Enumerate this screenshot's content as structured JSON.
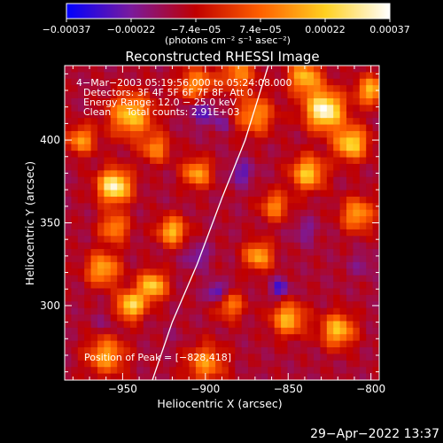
{
  "chart_data": {
    "type": "heatmap",
    "title": "Reconstructed RHESSI Image",
    "xlabel": "Heliocentric X (arcsec)",
    "ylabel": "Heliocentric Y (arcsec)",
    "xlim": [
      -985,
      -795
    ],
    "ylim": [
      255,
      445
    ],
    "xticks": [
      -950,
      -900,
      -850,
      -800
    ],
    "xtick_labels": [
      "−950",
      "−900",
      "−850",
      "−800"
    ],
    "yticks": [
      300,
      350,
      400
    ],
    "ytick_labels": [
      "300",
      "350",
      "400"
    ],
    "colorbar": {
      "range": [
        -0.00037,
        0.00037
      ],
      "tick_labels": [
        "−0.00037",
        "−0.00022",
        "−7.4e−05",
        "7.4e−05",
        "0.00022",
        "0.00037"
      ],
      "units_text": "(photons cm⁻² s⁻¹ asec⁻²)",
      "colors": [
        "#0000ff",
        "#7a1a9c",
        "#c00000",
        "#ff6000",
        "#ffd020",
        "#ffffff"
      ]
    },
    "annotations": [
      "4−Mar−2003 05:19:56.000 to 05:24:08.000",
      "Detectors: 3F 4F 5F 6F 7F 8F, Att 0",
      "Energy Range: 12.0 − 25.0 keV",
      "Clean     Total counts: 2.91E+03",
      "Position of Peak = [−828,418]"
    ],
    "peak": {
      "x": -828,
      "y": 418
    },
    "limb_curve": [
      [
        -932,
        255
      ],
      [
        -920,
        290
      ],
      [
        -905,
        325
      ],
      [
        -890,
        365
      ],
      [
        -876,
        400
      ],
      [
        -862,
        445
      ]
    ],
    "hotspots": [
      {
        "x": -955,
        "y": 372,
        "v": 0.00034,
        "s": 7
      },
      {
        "x": -945,
        "y": 415,
        "v": 0.00022,
        "s": 9
      },
      {
        "x": -905,
        "y": 432,
        "v": 0.00016,
        "s": 8
      },
      {
        "x": -840,
        "y": 438,
        "v": 0.0002,
        "s": 7
      },
      {
        "x": -828,
        "y": 418,
        "v": 0.00037,
        "s": 8
      },
      {
        "x": -812,
        "y": 398,
        "v": 0.00025,
        "s": 7
      },
      {
        "x": -870,
        "y": 415,
        "v": 0.00014,
        "s": 8
      },
      {
        "x": -838,
        "y": 380,
        "v": 0.00022,
        "s": 7
      },
      {
        "x": -808,
        "y": 355,
        "v": 0.00016,
        "s": 7
      },
      {
        "x": -962,
        "y": 322,
        "v": 0.00018,
        "s": 7
      },
      {
        "x": -945,
        "y": 300,
        "v": 0.00026,
        "s": 6
      },
      {
        "x": -920,
        "y": 345,
        "v": 0.0002,
        "s": 6
      },
      {
        "x": -905,
        "y": 380,
        "v": 0.00017,
        "s": 6
      },
      {
        "x": -932,
        "y": 312,
        "v": 0.00024,
        "s": 6
      },
      {
        "x": -850,
        "y": 292,
        "v": 0.00019,
        "s": 7
      },
      {
        "x": -868,
        "y": 330,
        "v": 0.00018,
        "s": 6
      },
      {
        "x": -820,
        "y": 285,
        "v": 0.00021,
        "s": 7
      },
      {
        "x": -900,
        "y": 265,
        "v": 0.00013,
        "s": 8
      },
      {
        "x": -960,
        "y": 270,
        "v": 0.00016,
        "s": 8
      },
      {
        "x": -885,
        "y": 300,
        "v": 0.0001,
        "s": 6
      },
      {
        "x": -975,
        "y": 400,
        "v": 0.00015,
        "s": 6
      },
      {
        "x": -930,
        "y": 395,
        "v": 0.00012,
        "s": 6
      },
      {
        "x": -858,
        "y": 360,
        "v": 0.00012,
        "s": 6
      },
      {
        "x": -800,
        "y": 430,
        "v": 0.0002,
        "s": 6
      },
      {
        "x": -955,
        "y": 347,
        "v": 0.00014,
        "s": 6
      },
      {
        "x": -880,
        "y": 440,
        "v": 0.00012,
        "s": 7
      }
    ],
    "coldspots": [
      {
        "x": -902,
        "y": 420,
        "v": -0.0003,
        "s": 7
      },
      {
        "x": -855,
        "y": 310,
        "v": -0.0003,
        "s": 4
      },
      {
        "x": -893,
        "y": 308,
        "v": -0.00033,
        "s": 4
      },
      {
        "x": -905,
        "y": 330,
        "v": -0.00025,
        "s": 5
      },
      {
        "x": -878,
        "y": 380,
        "v": -0.00026,
        "s": 5
      },
      {
        "x": -840,
        "y": 345,
        "v": -0.00022,
        "s": 5
      },
      {
        "x": -890,
        "y": 410,
        "v": -0.0002,
        "s": 4
      },
      {
        "x": -805,
        "y": 325,
        "v": -0.0002,
        "s": 5
      },
      {
        "x": -960,
        "y": 290,
        "v": -0.00018,
        "s": 5
      },
      {
        "x": -918,
        "y": 280,
        "v": -0.00015,
        "s": 5
      }
    ],
    "footer_date": "29−Apr−2022 13:37"
  }
}
